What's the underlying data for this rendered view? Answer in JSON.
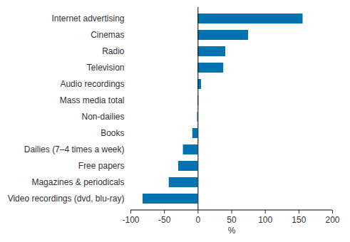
{
  "chart_data": {
    "type": "bar",
    "orientation": "horizontal",
    "categories": [
      "Internet advertising",
      "Cinemas",
      "Radio",
      "Television",
      "Audio recordings",
      "Mass media total",
      "Non-dailies",
      "Books",
      "Dailies (7–4 times a week)",
      "Free papers",
      "Magazines & periodicals",
      "Video recordings (dvd, blu-ray)"
    ],
    "values": [
      156,
      75,
      41,
      38,
      5,
      1,
      -1,
      -8,
      -22,
      -29,
      -43,
      -82
    ],
    "color": "#0073b0",
    "x_label": "%",
    "xlim": [
      -100,
      200
    ],
    "xticks": [
      -100,
      -50,
      0,
      50,
      100,
      150,
      200
    ],
    "grid": false
  }
}
